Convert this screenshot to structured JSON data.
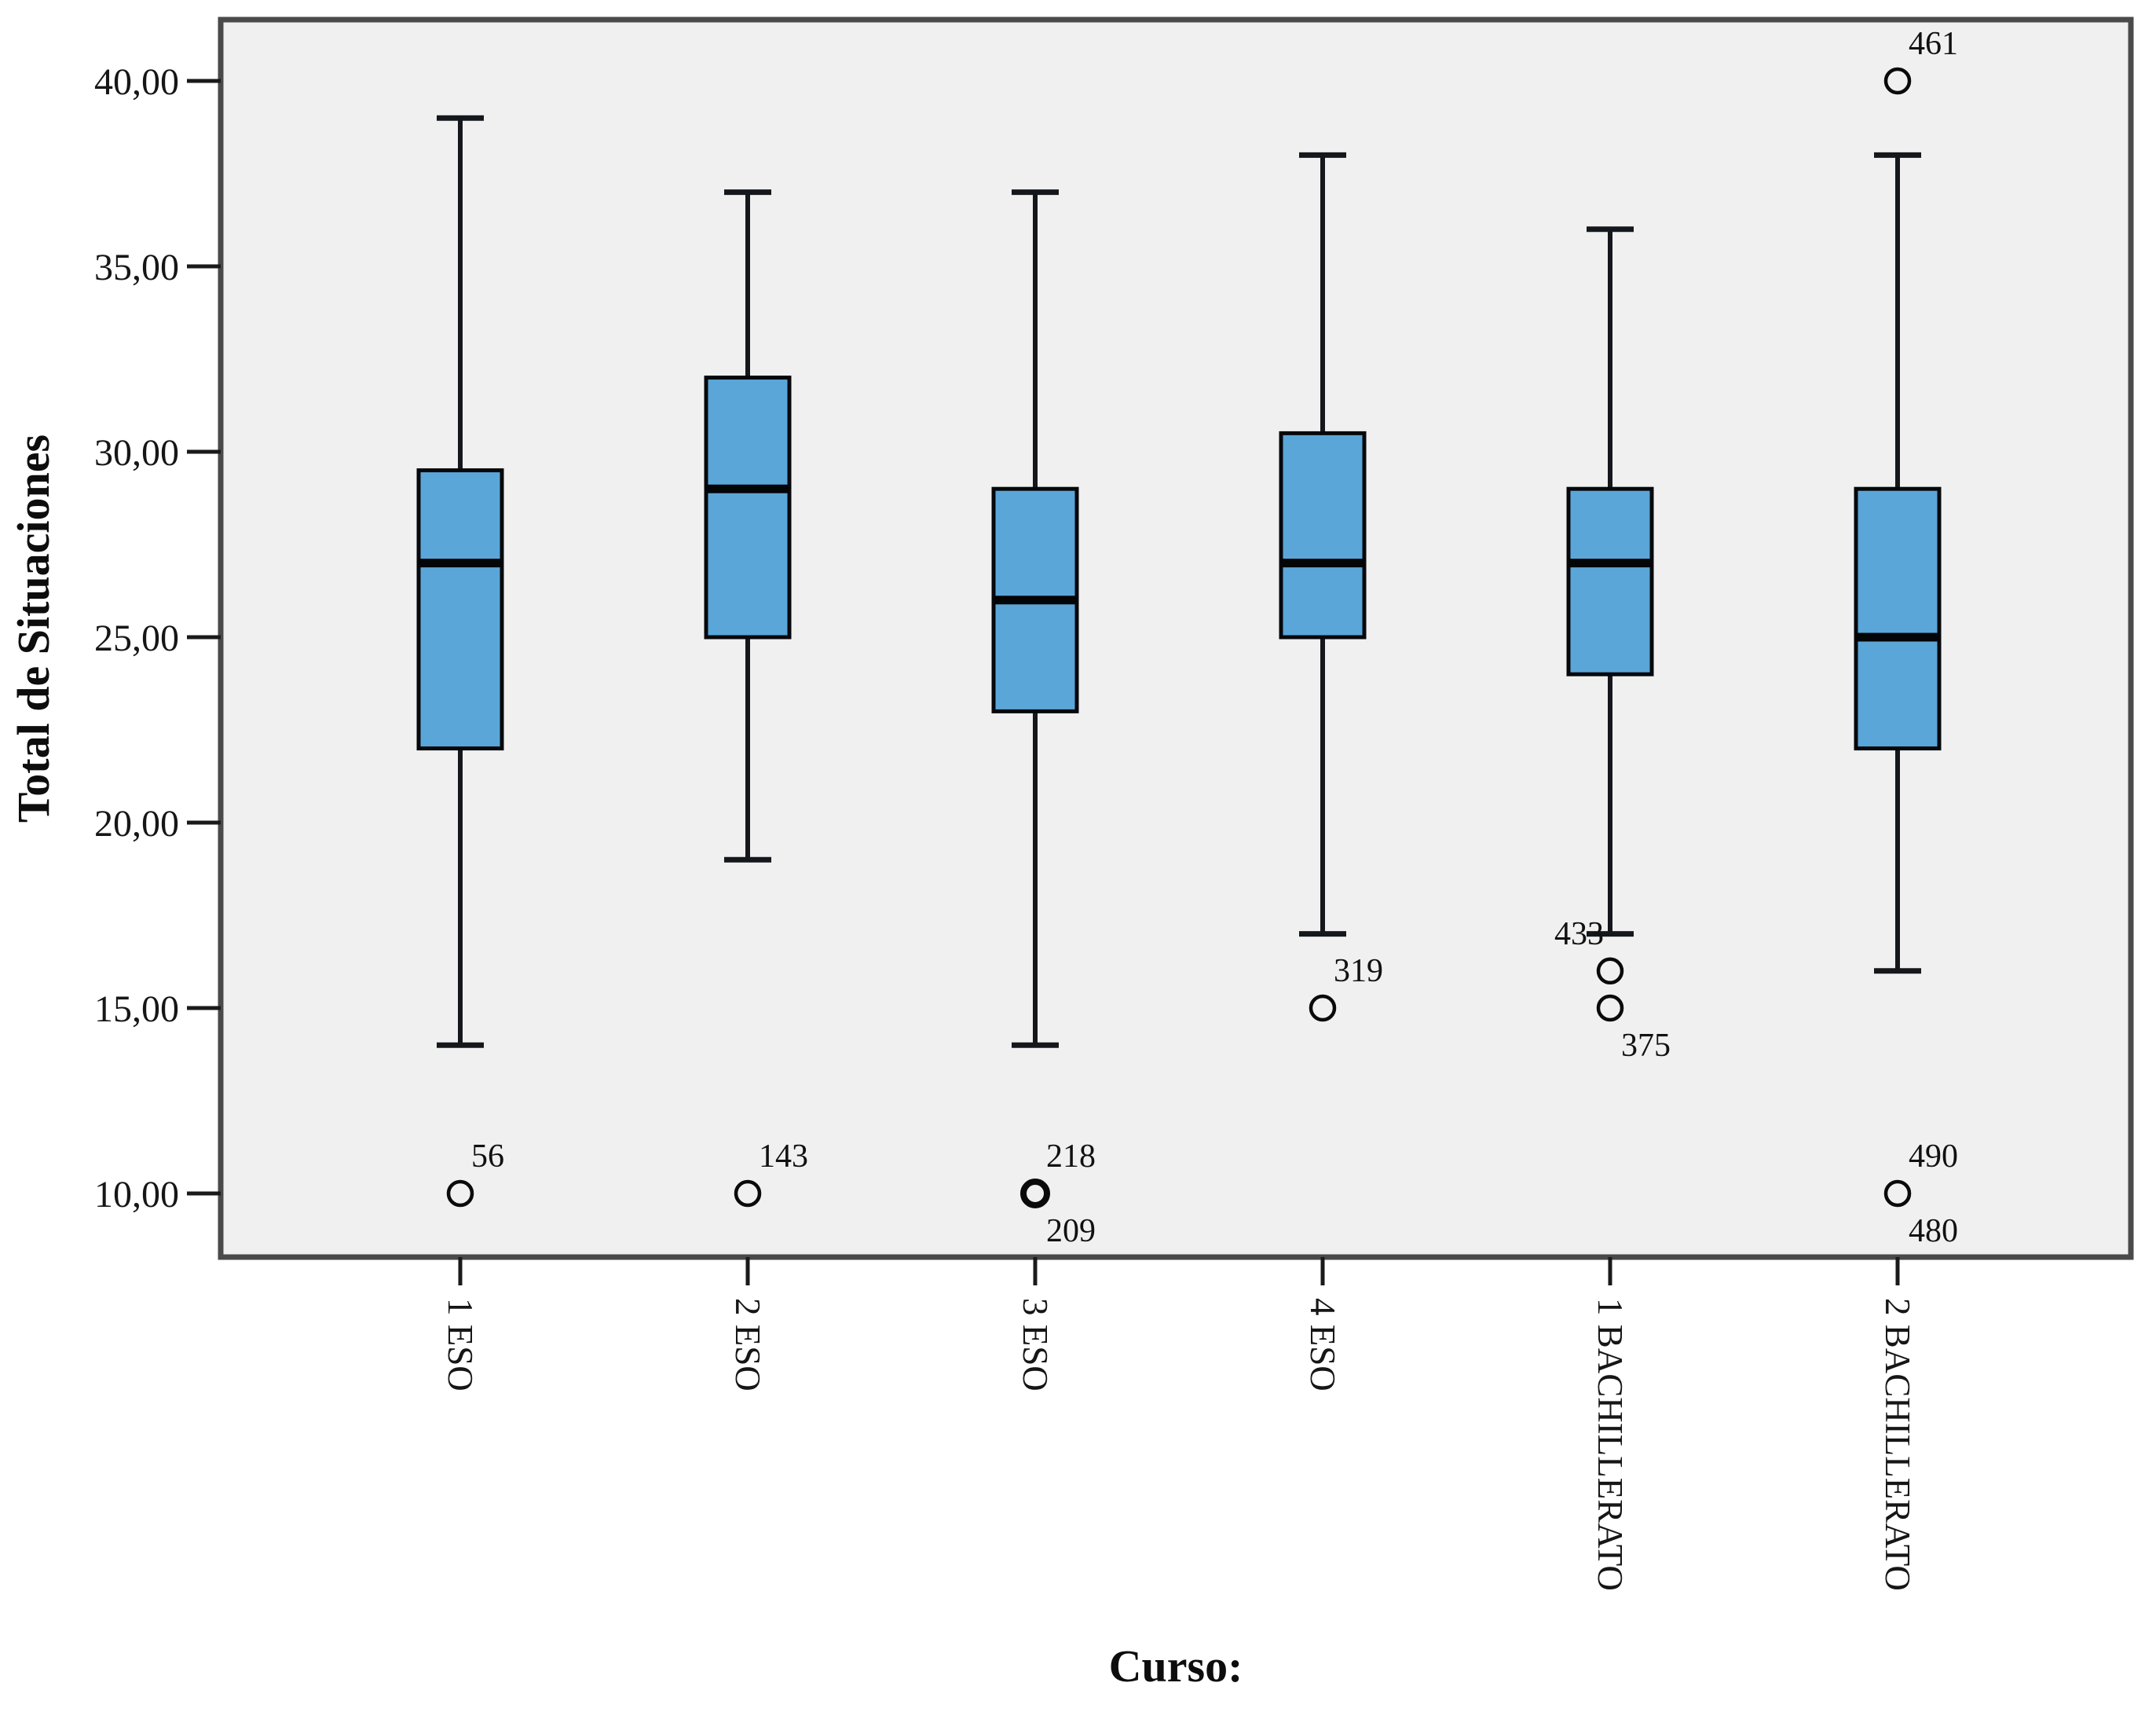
{
  "chart_data": {
    "type": "boxplot",
    "title": "",
    "xlabel": "Curso:",
    "ylabel": "Total de Situaciones",
    "ylim": [
      8.3,
      41.6
    ],
    "grid": false,
    "legend": "none",
    "y_ticks": [
      {
        "value": 40,
        "label": "40,00"
      },
      {
        "value": 35,
        "label": "35,00"
      },
      {
        "value": 30,
        "label": "30,00"
      },
      {
        "value": 25,
        "label": "25,00"
      },
      {
        "value": 20,
        "label": "20,00"
      },
      {
        "value": 15,
        "label": "15,00"
      },
      {
        "value": 10,
        "label": "10,00"
      }
    ],
    "categories": [
      "1 ESO",
      "2 ESO",
      "3 ESO",
      "4 ESO",
      "1 BACHILLERATO",
      "2 BACHILLERATO"
    ],
    "series": [
      {
        "category": "1 ESO",
        "whisker_low": 14,
        "q1": 22,
        "median": 27,
        "q3": 29.5,
        "whisker_high": 39,
        "outliers": [
          {
            "value": 10,
            "bold": false,
            "labels": [
              {
                "text": "56",
                "pos": "above-right"
              }
            ]
          }
        ]
      },
      {
        "category": "2 ESO",
        "whisker_low": 19,
        "q1": 25,
        "median": 29,
        "q3": 32,
        "whisker_high": 37,
        "outliers": [
          {
            "value": 10,
            "bold": false,
            "labels": [
              {
                "text": "143",
                "pos": "above-right"
              }
            ]
          }
        ]
      },
      {
        "category": "3 ESO",
        "whisker_low": 14,
        "q1": 23,
        "median": 26,
        "q3": 29,
        "whisker_high": 37,
        "outliers": [
          {
            "value": 10,
            "bold": true,
            "labels": [
              {
                "text": "218",
                "pos": "above-right"
              },
              {
                "text": "209",
                "pos": "below-right"
              }
            ]
          }
        ]
      },
      {
        "category": "4 ESO",
        "whisker_low": 17,
        "q1": 25,
        "median": 27,
        "q3": 30.5,
        "whisker_high": 38,
        "outliers": [
          {
            "value": 15,
            "bold": false,
            "labels": [
              {
                "text": "319",
                "pos": "above-right"
              }
            ]
          }
        ]
      },
      {
        "category": "1 BACHILLERATO",
        "whisker_low": 17,
        "q1": 24,
        "median": 27,
        "q3": 29,
        "whisker_high": 36,
        "outliers": [
          {
            "value": 16,
            "bold": false,
            "labels": [
              {
                "text": "433",
                "pos": "above-left"
              }
            ]
          },
          {
            "value": 15,
            "bold": false,
            "labels": [
              {
                "text": "375",
                "pos": "below-right"
              }
            ]
          }
        ]
      },
      {
        "category": "2 BACHILLERATO",
        "whisker_low": 16,
        "q1": 22,
        "median": 25,
        "q3": 29,
        "whisker_high": 38,
        "outliers": [
          {
            "value": 40,
            "bold": false,
            "labels": [
              {
                "text": "461",
                "pos": "above-right"
              }
            ]
          },
          {
            "value": 10,
            "bold": false,
            "labels": [
              {
                "text": "490",
                "pos": "above-right"
              },
              {
                "text": "480",
                "pos": "below-right"
              }
            ]
          }
        ]
      }
    ],
    "colors": {
      "box_fill": "#5BA6D8",
      "box_border": "#06080c",
      "median": "#040507",
      "whisker": "#14171c",
      "outlier_stroke": "#0a0a0a",
      "plot_background": "#f0f0f0",
      "frame": "#4a4a4a",
      "page_background": "#ffffff"
    }
  }
}
